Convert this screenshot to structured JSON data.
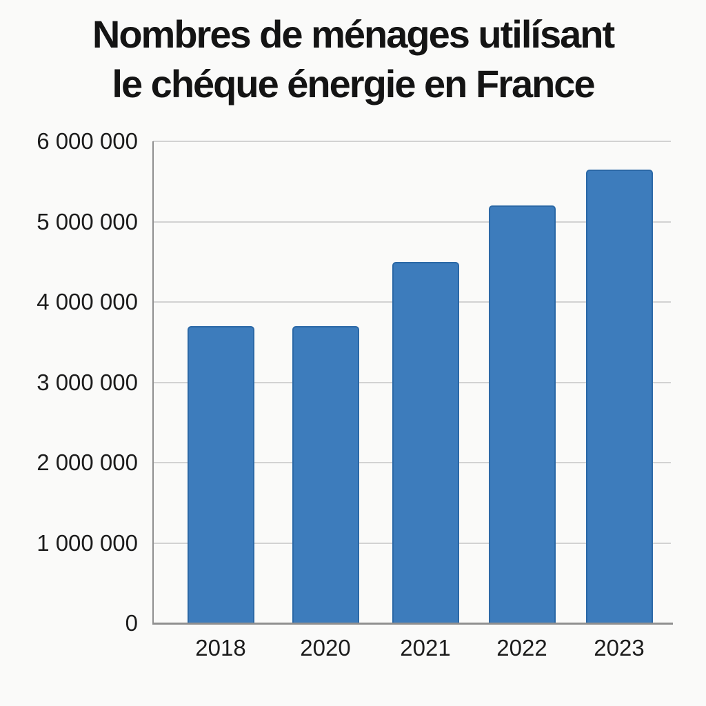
{
  "title": {
    "line1": "Nombres de ménages utilísant",
    "line2": "le chéque énergie en France"
  },
  "colors": {
    "background": "#fafaf9",
    "bar_fill": "#3d7cbc",
    "bar_border": "#2b68a6",
    "gridline": "#d2d2d2",
    "axis": "#8f8f8f",
    "text": "#1c1c1c"
  },
  "chart_data": {
    "type": "bar",
    "title": "Nombres de ménages utilísant le chéque énergie en France",
    "categories": [
      "2018",
      "2020",
      "2021",
      "2022",
      "2023"
    ],
    "values": [
      3700000,
      3700000,
      4500000,
      5200000,
      5650000
    ],
    "xlabel": "",
    "ylabel": "",
    "ylim": [
      0,
      6000000
    ],
    "yticks": [
      0,
      1000000,
      2000000,
      3000000,
      4000000,
      5000000,
      6000000
    ],
    "ytick_labels": [
      "0",
      "1 000 000",
      "2 000 000",
      "3 000 000",
      "4 000 000",
      "5 000 000",
      "6 000 000"
    ],
    "grid": true,
    "legend": false,
    "bar_color": "#3d7cbc"
  }
}
